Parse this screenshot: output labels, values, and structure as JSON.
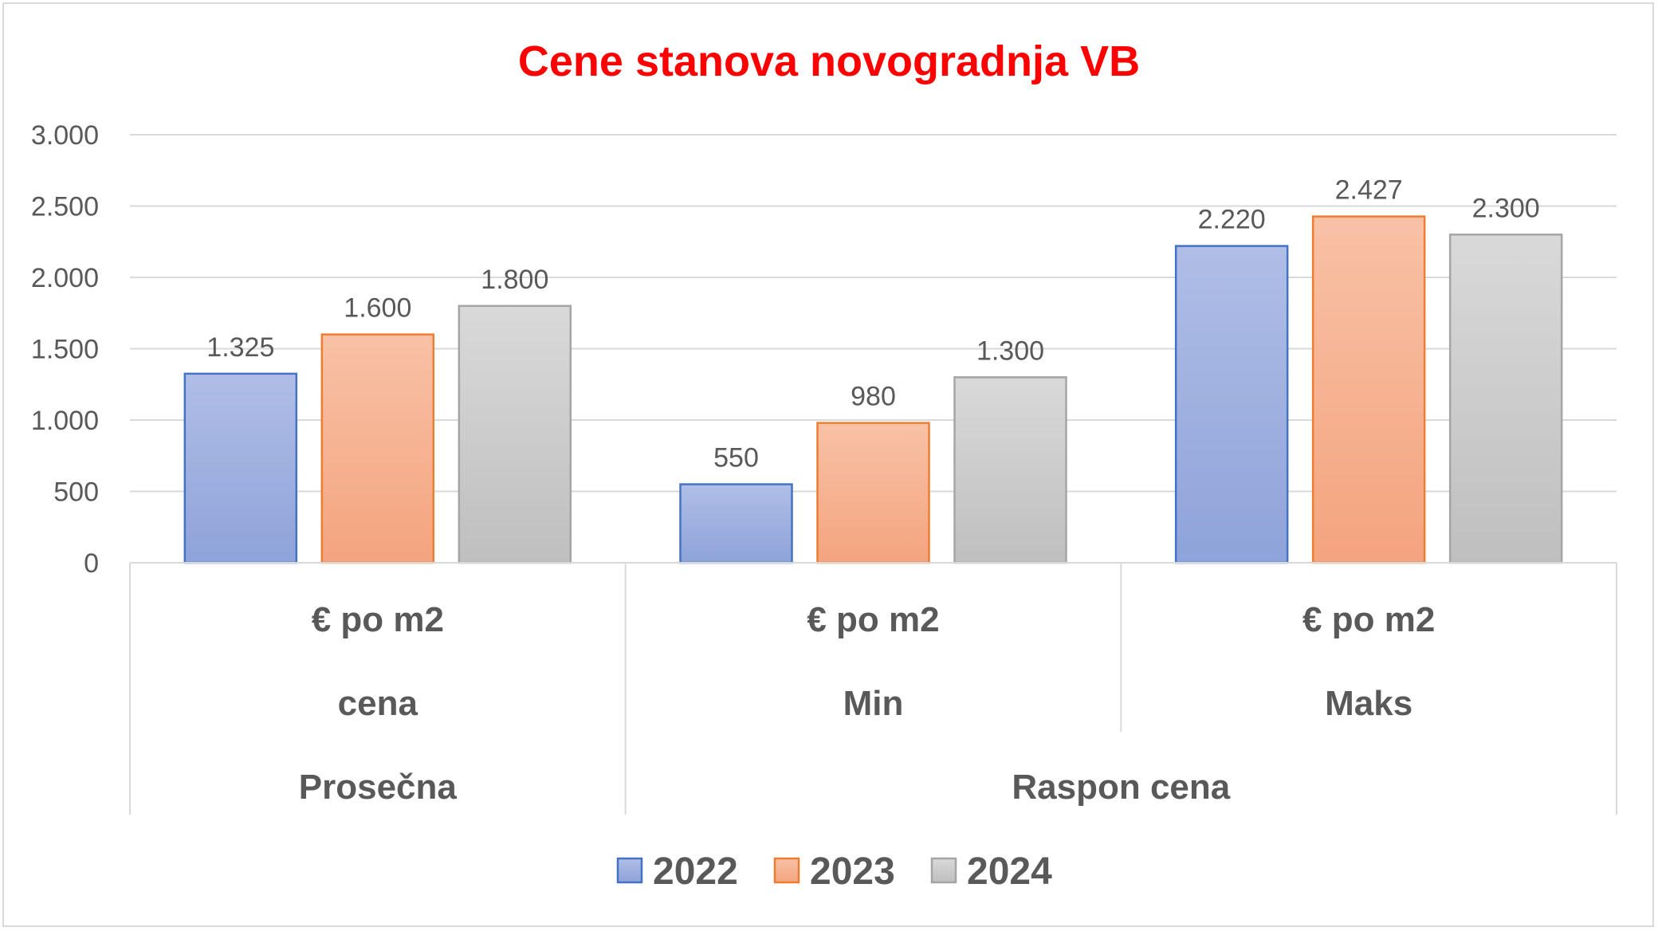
{
  "chart_data": {
    "type": "bar",
    "title": "Cene stanova novogradnja VB",
    "ylim": [
      0,
      3000
    ],
    "yticks": [
      0,
      500,
      1000,
      1500,
      2000,
      2500,
      3000
    ],
    "ytick_labels": [
      "0",
      "500",
      "1.000",
      "1.500",
      "2.000",
      "2.500",
      "3.000"
    ],
    "grid": true,
    "legend_position": "bottom",
    "categories": [
      {
        "level1": "€ po m2",
        "level2": "cena",
        "group": "Prosečna"
      },
      {
        "level1": "€ po m2",
        "level2": "Min",
        "group": "Raspon cena"
      },
      {
        "level1": "€ po m2",
        "level2": "Maks",
        "group": "Raspon cena"
      }
    ],
    "groups": [
      "Prosečna",
      "Raspon cena"
    ],
    "series": [
      {
        "name": "2022",
        "values": [
          1325,
          550,
          2220
        ],
        "labels": [
          "1.325",
          "550",
          "2.220"
        ],
        "color": "#8ea3da",
        "color_top": "#b0bee6",
        "border": "#4472c4"
      },
      {
        "name": "2023",
        "values": [
          1600,
          980,
          2427
        ],
        "labels": [
          "1.600",
          "980",
          "2.427"
        ],
        "color": "#f4a47e",
        "color_top": "#f8c1a6",
        "border": "#ed7d31"
      },
      {
        "name": "2024",
        "values": [
          1800,
          1300,
          2300
        ],
        "labels": [
          "1.800",
          "1.300",
          "2.300"
        ],
        "color": "#bfbfbf",
        "color_top": "#d9d9d9",
        "border": "#a5a5a5"
      }
    ]
  }
}
